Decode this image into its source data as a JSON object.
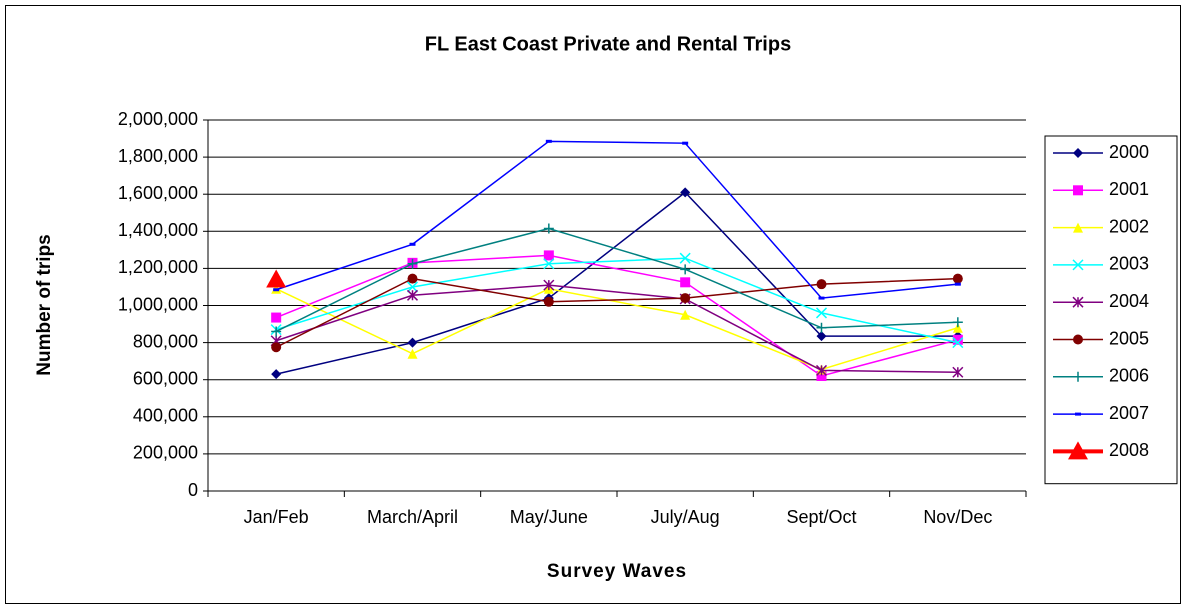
{
  "chart_data": {
    "type": "line",
    "title": "FL East Coast Private and Rental Trips",
    "x_label": "Survey Waves",
    "y_label": "Number of trips",
    "categories": [
      "Jan/Feb",
      "March/April",
      "May/June",
      "July/Aug",
      "Sept/Oct",
      "Nov/Dec"
    ],
    "series": [
      {
        "name": "2000",
        "color": "#000080",
        "marker": "diamond",
        "values": [
          630000,
          800000,
          1040000,
          1610000,
          835000,
          835000
        ]
      },
      {
        "name": "2001",
        "color": "#ff00ff",
        "marker": "square",
        "values": [
          935000,
          1230000,
          1270000,
          1125000,
          620000,
          815000
        ]
      },
      {
        "name": "2002",
        "color": "#ffff00",
        "marker": "triangle",
        "values": [
          1090000,
          740000,
          1090000,
          950000,
          655000,
          880000
        ]
      },
      {
        "name": "2003",
        "color": "#00ffff",
        "marker": "x",
        "values": [
          870000,
          1100000,
          1225000,
          1255000,
          960000,
          800000
        ]
      },
      {
        "name": "2004",
        "color": "#800080",
        "marker": "star",
        "values": [
          810000,
          1055000,
          1110000,
          1035000,
          650000,
          640000
        ]
      },
      {
        "name": "2005",
        "color": "#800000",
        "marker": "circle",
        "values": [
          775000,
          1145000,
          1020000,
          1040000,
          1115000,
          1145000
        ]
      },
      {
        "name": "2006",
        "color": "#008080",
        "marker": "plus",
        "values": [
          860000,
          1225000,
          1415000,
          1195000,
          880000,
          910000
        ]
      },
      {
        "name": "2007",
        "color": "#0000ff",
        "marker": "dash",
        "values": [
          1085000,
          1330000,
          1885000,
          1875000,
          1040000,
          1115000
        ]
      },
      {
        "name": "2008",
        "color": "#ff0000",
        "marker": "bigtriangle",
        "values": [
          1140000,
          null,
          null,
          null,
          null,
          null
        ]
      }
    ],
    "ylim": [
      0,
      2000000
    ],
    "yticks": [
      0,
      {
        "value": 200000,
        "label": "200,000"
      },
      {
        "value": 400000,
        "label": "400,000"
      },
      {
        "value": 600000,
        "label": "600,000"
      },
      {
        "value": 800000,
        "label": "800,000"
      },
      {
        "value": 1000000,
        "label": "1,000,000"
      },
      {
        "value": 1200000,
        "label": "1,200,000"
      },
      {
        "value": 1400000,
        "label": "1,400,000"
      },
      {
        "value": 1600000,
        "label": "1,600,000"
      },
      {
        "value": 1800000,
        "label": "1,800,000"
      },
      {
        "value": 2000000,
        "label": "2,000,000"
      }
    ],
    "grid": true,
    "legend": "right"
  }
}
